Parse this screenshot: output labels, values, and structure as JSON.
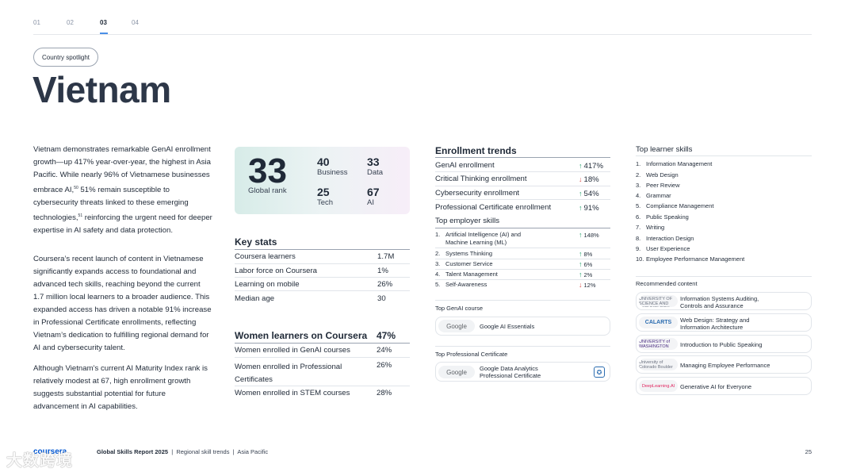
{
  "nav": {
    "items": [
      "01",
      "02",
      "03",
      "04"
    ],
    "active": "03"
  },
  "header": {
    "pill": "Country spotlight",
    "title": "Vietnam"
  },
  "intro": {
    "p1_a": "Vietnam demonstrates remarkable GenAI enrollment growth—up 417% year-over-year, the highest in Asia Pacific. While nearly 96% of Vietnamese businesses embrace AI,",
    "p1_sup1": "50",
    "p1_b": " 51% remain susceptible to cybersecurity threats linked to these emerging technologies,",
    "p1_sup2": "51",
    "p1_c": " reinforcing the urgent need for deeper expertise in AI safety and data protection.",
    "p2": "Coursera’s recent launch of content in Vietnamese significantly expands access to foundational and advanced tech skills, reaching beyond the current 1.7 million local learners to a broader audience. This expanded access has driven a notable 91% increase in Professional Certificate enrollments, reflecting Vietnam’s dedication to fulfilling regional demand for AI and cybersecurity talent.",
    "p3": "Although Vietnam’s current AI Maturity Index rank is relatively modest at 67, high enrollment growth suggests substantial potential for future advancement in AI capabilities."
  },
  "rank": {
    "value": "33",
    "label": "Global rank",
    "stats": [
      {
        "value": "40",
        "label": "Business"
      },
      {
        "value": "33",
        "label": "Data"
      },
      {
        "value": "25",
        "label": "Tech"
      },
      {
        "value": "67",
        "label": "AI"
      }
    ]
  },
  "key_stats": {
    "title": "Key stats",
    "rows": [
      {
        "label": "Coursera learners",
        "value": "1.7M"
      },
      {
        "label": "Labor force on Coursera",
        "value": "1%"
      },
      {
        "label": "Learning on mobile",
        "value": "26%"
      },
      {
        "label": "Median age",
        "value": "30"
      }
    ]
  },
  "women": {
    "title": "Women learners on Coursera",
    "value": "47%",
    "rows": [
      {
        "label": "Women enrolled in GenAI courses",
        "value": "24%"
      },
      {
        "label": "Women enrolled in Professional Certificates",
        "value": "26%"
      },
      {
        "label": "Women enrolled in STEM courses",
        "value": "28%"
      }
    ]
  },
  "enrollment": {
    "title": "Enrollment trends",
    "rows": [
      {
        "label": "GenAI enrollment",
        "value": "417%",
        "dir": "up"
      },
      {
        "label": "Critical Thinking enrollment",
        "value": "18%",
        "dir": "down"
      },
      {
        "label": "Cybersecurity enrollment",
        "value": "54%",
        "dir": "up"
      },
      {
        "label": "Professional Certificate enrollment",
        "value": "91%",
        "dir": "up"
      }
    ]
  },
  "employer_skills": {
    "title": "Top employer skills",
    "rows": [
      {
        "num": "1.",
        "label": "Artificial Intelligence (AI) and Machine Learning (ML)",
        "value": "148%",
        "dir": "up"
      },
      {
        "num": "2.",
        "label": "Systems Thinking",
        "value": "8%",
        "dir": "up"
      },
      {
        "num": "3.",
        "label": "Customer Service",
        "value": "6%",
        "dir": "up"
      },
      {
        "num": "4.",
        "label": "Talent Management",
        "value": "2%",
        "dir": "up"
      },
      {
        "num": "5.",
        "label": "Self-Awareness",
        "value": "12%",
        "dir": "down"
      }
    ]
  },
  "top_genai": {
    "title": "Top GenAI course",
    "logo": "Google",
    "name": "Google AI Essentials"
  },
  "top_cert": {
    "title": "Top Professional Certificate",
    "logo": "Google",
    "name": "Google Data Analytics Professional Certificate"
  },
  "learner_skills": {
    "title": "Top learner skills",
    "items": [
      "Information Management",
      "Web Design",
      "Peer Review",
      "Grammar",
      "Compliance Management",
      "Public Speaking",
      "Writing",
      "Interaction Design",
      "User Experience",
      "Employee Performance Management"
    ]
  },
  "recommended": {
    "title": "Recommended content",
    "items": [
      {
        "logo": "THE HONG KONG UNIVERSITY OF SCIENCE AND TECHNOLOGY",
        "name": "Information Systems Auditing, Controls and Assurance"
      },
      {
        "logo": "CALARTS",
        "name": "Web Design: Strategy and Information Architecture"
      },
      {
        "logo": "UNIVERSITY of WASHINGTON",
        "name": "Introduction to Public Speaking"
      },
      {
        "logo": "University of Colorado Boulder",
        "name": "Managing Employee Performance"
      },
      {
        "logo": "DeepLearning.AI",
        "name": "Generative AI for Everyone"
      }
    ]
  },
  "footer": {
    "logo": "coursera",
    "report": "Global Skills Report 2025",
    "section": "Regional skill trends",
    "region": "Asia Pacific",
    "page": "25"
  },
  "watermark": "大数跨境"
}
